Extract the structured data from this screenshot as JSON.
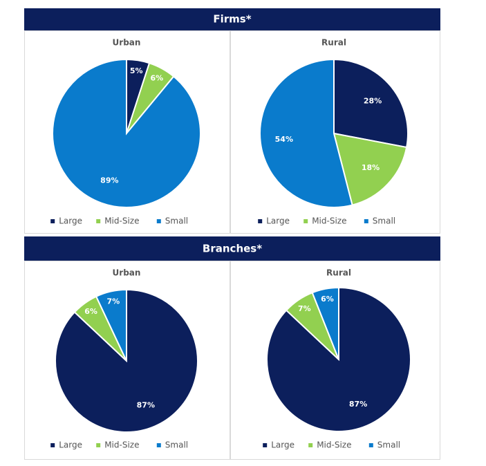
{
  "headers": [
    "Firms*",
    "Branches*"
  ],
  "chart_data": [
    {
      "type": "pie",
      "title": "Urban",
      "categories": [
        "Large",
        "Mid-Size",
        "Small"
      ],
      "values": [
        5,
        6,
        89
      ],
      "value_labels": [
        "5%",
        "6%",
        "89%"
      ],
      "colors": [
        "#0c1f5c",
        "#92d050",
        "#0a7bcc"
      ]
    },
    {
      "type": "pie",
      "title": "Rural",
      "categories": [
        "Large",
        "Mid-Size",
        "Small"
      ],
      "values": [
        28,
        18,
        54
      ],
      "value_labels": [
        "28%",
        "18%",
        "54%"
      ],
      "colors": [
        "#0c1f5c",
        "#92d050",
        "#0a7bcc"
      ]
    },
    {
      "type": "pie",
      "title": "Urban",
      "categories": [
        "Large",
        "Mid-Size",
        "Small"
      ],
      "values": [
        87,
        6,
        7
      ],
      "value_labels": [
        "87%",
        "6%",
        "7%"
      ],
      "colors": [
        "#0c1f5c",
        "#92d050",
        "#0a7bcc"
      ]
    },
    {
      "type": "pie",
      "title": "Rural",
      "categories": [
        "Large",
        "Mid-Size",
        "Small"
      ],
      "values": [
        87,
        7,
        6
      ],
      "value_labels": [
        "87%",
        "7%",
        "6%"
      ],
      "colors": [
        "#0c1f5c",
        "#92d050",
        "#0a7bcc"
      ]
    }
  ]
}
